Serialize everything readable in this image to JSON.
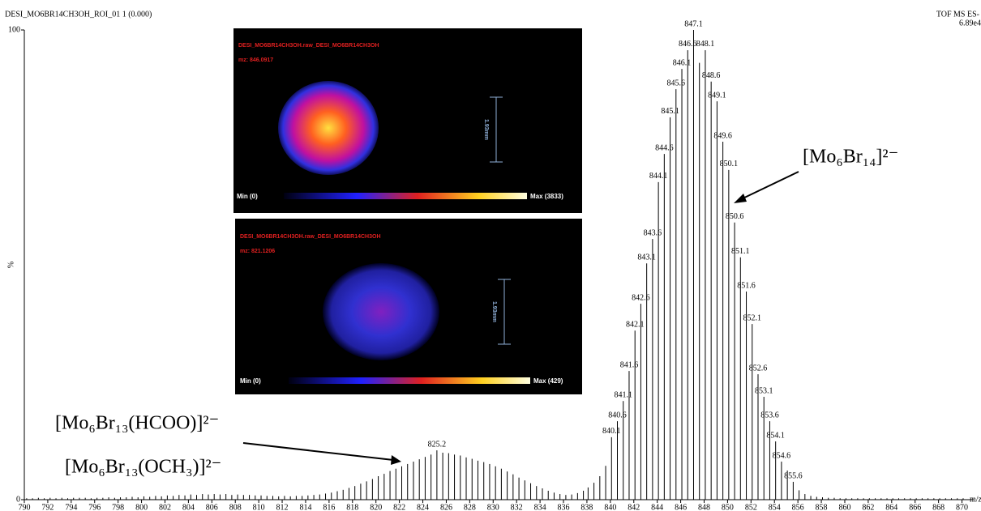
{
  "chart_data": {
    "type": "stick",
    "title": "DESI_MO6BR14CH3OH_ROI_01 1 (0.000)",
    "instrument": "TOF MS ES-",
    "intensity": "6.89e4",
    "x_label": "m/z",
    "y_label": "%",
    "xlim": [
      790,
      871
    ],
    "ylim": [
      0,
      100
    ],
    "xticks": [
      790,
      792,
      794,
      796,
      798,
      800,
      802,
      804,
      806,
      808,
      810,
      812,
      814,
      816,
      818,
      820,
      822,
      824,
      826,
      828,
      830,
      832,
      834,
      836,
      838,
      840,
      842,
      844,
      846,
      848,
      850,
      852,
      854,
      856,
      858,
      860,
      862,
      864,
      866,
      868,
      870
    ],
    "yticks": [
      0,
      100
    ],
    "color": "#000000",
    "x": [
      790.2,
      790.7,
      791.2,
      791.7,
      792.2,
      792.7,
      793.2,
      793.7,
      794.2,
      794.7,
      795.2,
      795.7,
      796.2,
      796.7,
      797.2,
      797.7,
      798.2,
      798.7,
      799.2,
      799.7,
      800.2,
      800.7,
      801.2,
      801.7,
      802.2,
      802.7,
      803.2,
      803.7,
      804.2,
      804.7,
      805.2,
      805.7,
      806.2,
      806.7,
      807.2,
      807.7,
      808.2,
      808.7,
      809.2,
      809.7,
      810.2,
      810.7,
      811.2,
      811.7,
      812.2,
      812.7,
      813.2,
      813.7,
      814.2,
      814.7,
      815.2,
      815.7,
      816.2,
      816.7,
      817.2,
      817.7,
      818.2,
      818.7,
      819.2,
      819.7,
      820.2,
      820.7,
      821.2,
      821.7,
      822.2,
      822.7,
      823.2,
      823.7,
      824.2,
      824.7,
      825.2,
      825.7,
      826.2,
      826.7,
      827.2,
      827.7,
      828.2,
      828.7,
      829.2,
      829.7,
      830.2,
      830.7,
      831.2,
      831.7,
      832.2,
      832.7,
      833.2,
      833.7,
      834.2,
      834.7,
      835.2,
      835.7,
      836.2,
      836.7,
      837.2,
      837.7,
      838.1,
      838.6,
      839.1,
      839.6,
      840.1,
      840.6,
      841.1,
      841.6,
      842.1,
      842.6,
      843.1,
      843.6,
      844.1,
      844.6,
      845.1,
      845.6,
      846.1,
      846.6,
      847.1,
      847.6,
      848.1,
      848.6,
      849.1,
      849.6,
      850.1,
      850.6,
      851.1,
      851.6,
      852.1,
      852.6,
      853.1,
      853.6,
      854.1,
      854.6,
      855.1,
      855.6,
      856.1,
      856.6,
      857.1,
      857.6,
      858.1,
      858.6,
      859.1,
      859.6,
      860.1,
      860.6,
      861.1,
      861.6,
      862.1,
      862.6,
      863.1,
      863.6,
      864.1,
      864.6,
      865.1,
      865.6,
      866.1,
      866.6,
      867.1,
      867.6,
      868.1,
      868.6,
      869.1,
      869.6,
      870.1
    ],
    "y": [
      0.3,
      0.3,
      0.4,
      0.3,
      0.4,
      0.3,
      0.4,
      0.3,
      0.4,
      0.4,
      0.4,
      0.3,
      0.4,
      0.4,
      0.5,
      0.4,
      0.5,
      0.5,
      0.6,
      0.5,
      0.7,
      0.6,
      0.8,
      0.7,
      0.9,
      0.8,
      1.0,
      0.9,
      1.1,
      1.0,
      1.2,
      1.1,
      1.2,
      1.1,
      1.2,
      1.0,
      1.1,
      1.0,
      1.0,
      0.9,
      0.9,
      0.8,
      0.8,
      0.7,
      0.8,
      0.7,
      0.8,
      0.8,
      0.9,
      1.0,
      1.1,
      1.3,
      1.5,
      1.8,
      2.1,
      2.5,
      2.9,
      3.4,
      3.9,
      4.4,
      5.0,
      5.5,
      6.1,
      6.6,
      7.1,
      7.6,
      8.1,
      8.6,
      9.1,
      9.6,
      10.5,
      10.0,
      9.9,
      9.6,
      9.4,
      9.0,
      8.7,
      8.3,
      8.0,
      7.6,
      7.1,
      6.6,
      6.0,
      5.4,
      4.7,
      4.1,
      3.5,
      2.9,
      2.4,
      1.9,
      1.5,
      1.2,
      1.0,
      1.1,
      1.4,
      1.9,
      2.6,
      3.6,
      5.0,
      7.2,
      13.3,
      16.7,
      21.0,
      27.4,
      36.0,
      41.7,
      50.3,
      55.5,
      67.6,
      73.6,
      81.4,
      87.4,
      91.7,
      95.7,
      100,
      93,
      95.7,
      89,
      84.8,
      76.2,
      70.2,
      59,
      51.6,
      44.3,
      37.4,
      26.7,
      21.9,
      16.7,
      12.4,
      8.1,
      6.2,
      3.8,
      2.0,
      1.2,
      0.8,
      0.6,
      0.5,
      0.4,
      0.4,
      0.3,
      0.3,
      0.3,
      0.3,
      0.3,
      0.3,
      0.3,
      0.3,
      0.3,
      0.3,
      0.3,
      0.3,
      0.3,
      0.3,
      0.3,
      0.3,
      0.3,
      0.3,
      0.3,
      0.3,
      0.3,
      0.3
    ],
    "peak_labels": [
      825.2,
      840.1,
      840.6,
      841.1,
      841.6,
      842.1,
      842.6,
      843.1,
      843.6,
      844.1,
      844.6,
      845.1,
      845.6,
      846.1,
      846.6,
      847.1,
      848.1,
      848.6,
      849.1,
      849.6,
      850.1,
      850.6,
      851.1,
      851.6,
      852.1,
      852.6,
      853.1,
      853.6,
      854.1,
      854.6,
      855.6
    ],
    "annotations": [
      "[Mo₆Br₁₄]²⁻",
      "[Mo₆Br₁₃(HCOO)]²⁻",
      "[Mo₆Br₁₃(OCH₃)]²⁻"
    ],
    "insets": [
      {
        "file": "DESI_MO6BR14CH3OH.raw_DESI_MO6BR14CH3OH",
        "mz": "mz: 846.0917",
        "scale": "1.93mm",
        "min": "Min (0)",
        "max": "Max (3833)"
      },
      {
        "file": "DESI_MO6BR14CH3OH.raw_DESI_MO6BR14CH3OH",
        "mz": "mz: 821.1206",
        "scale": "1.93mm",
        "min": "Min (0)",
        "max": "Max (429)"
      }
    ]
  }
}
